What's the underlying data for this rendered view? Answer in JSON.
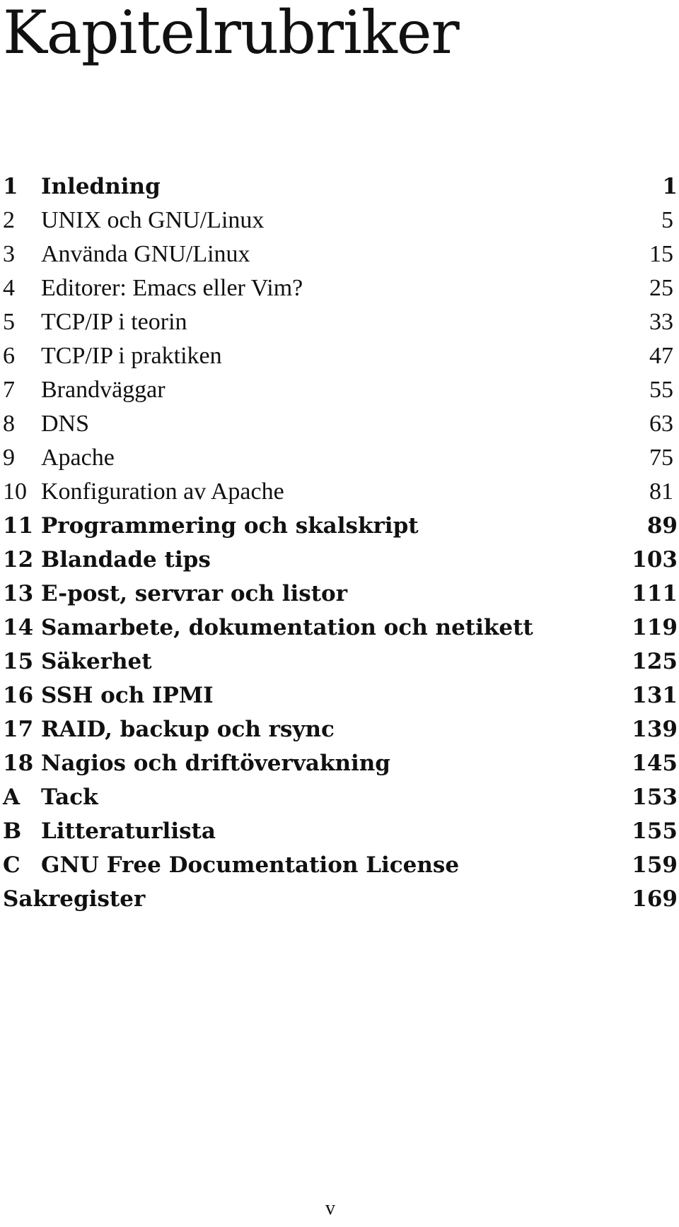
{
  "page": {
    "title": "Kapitelrubriker",
    "folio": "v"
  },
  "toc": [
    {
      "num": "1",
      "title": "Inledning",
      "page": "1",
      "style": "bold"
    },
    {
      "num": "2",
      "title": "UNIX och GNU/Linux",
      "page": "5",
      "style": "light"
    },
    {
      "num": "3",
      "title": "Använda GNU/Linux",
      "page": "15",
      "style": "light"
    },
    {
      "num": "4",
      "title": "Editorer: Emacs eller Vim?",
      "page": "25",
      "style": "light"
    },
    {
      "num": "5",
      "title": "TCP/IP i teorin",
      "page": "33",
      "style": "light"
    },
    {
      "num": "6",
      "title": "TCP/IP i praktiken",
      "page": "47",
      "style": "light"
    },
    {
      "num": "7",
      "title": "Brandväggar",
      "page": "55",
      "style": "light"
    },
    {
      "num": "8",
      "title": "DNS",
      "page": "63",
      "style": "light"
    },
    {
      "num": "9",
      "title": "Apache",
      "page": "75",
      "style": "light"
    },
    {
      "num": "10",
      "title": "Konfiguration av Apache",
      "page": "81",
      "style": "light"
    },
    {
      "num": "11",
      "title": "Programmering och skalskript",
      "page": "89",
      "style": "bold"
    },
    {
      "num": "12",
      "title": "Blandade tips",
      "page": "103",
      "style": "bold"
    },
    {
      "num": "13",
      "title": "E-post, servrar och listor",
      "page": "111",
      "style": "bold"
    },
    {
      "num": "14",
      "title": "Samarbete, dokumentation och netikett",
      "page": "119",
      "style": "bold"
    },
    {
      "num": "15",
      "title": "Säkerhet",
      "page": "125",
      "style": "bold"
    },
    {
      "num": "16",
      "title": "SSH och IPMI",
      "page": "131",
      "style": "bold"
    },
    {
      "num": "17",
      "title": "RAID, backup och rsync",
      "page": "139",
      "style": "bold"
    },
    {
      "num": "18",
      "title": "Nagios och driftövervakning",
      "page": "145",
      "style": "bold"
    },
    {
      "num": "A",
      "title": "Tack",
      "page": "153",
      "style": "bold"
    },
    {
      "num": "B",
      "title": "Litteraturlista",
      "page": "155",
      "style": "bold"
    },
    {
      "num": "C",
      "title": "GNU Free Documentation License",
      "page": "159",
      "style": "bold"
    },
    {
      "num": "",
      "title": "Sakregister",
      "page": "169",
      "style": "bold"
    }
  ]
}
